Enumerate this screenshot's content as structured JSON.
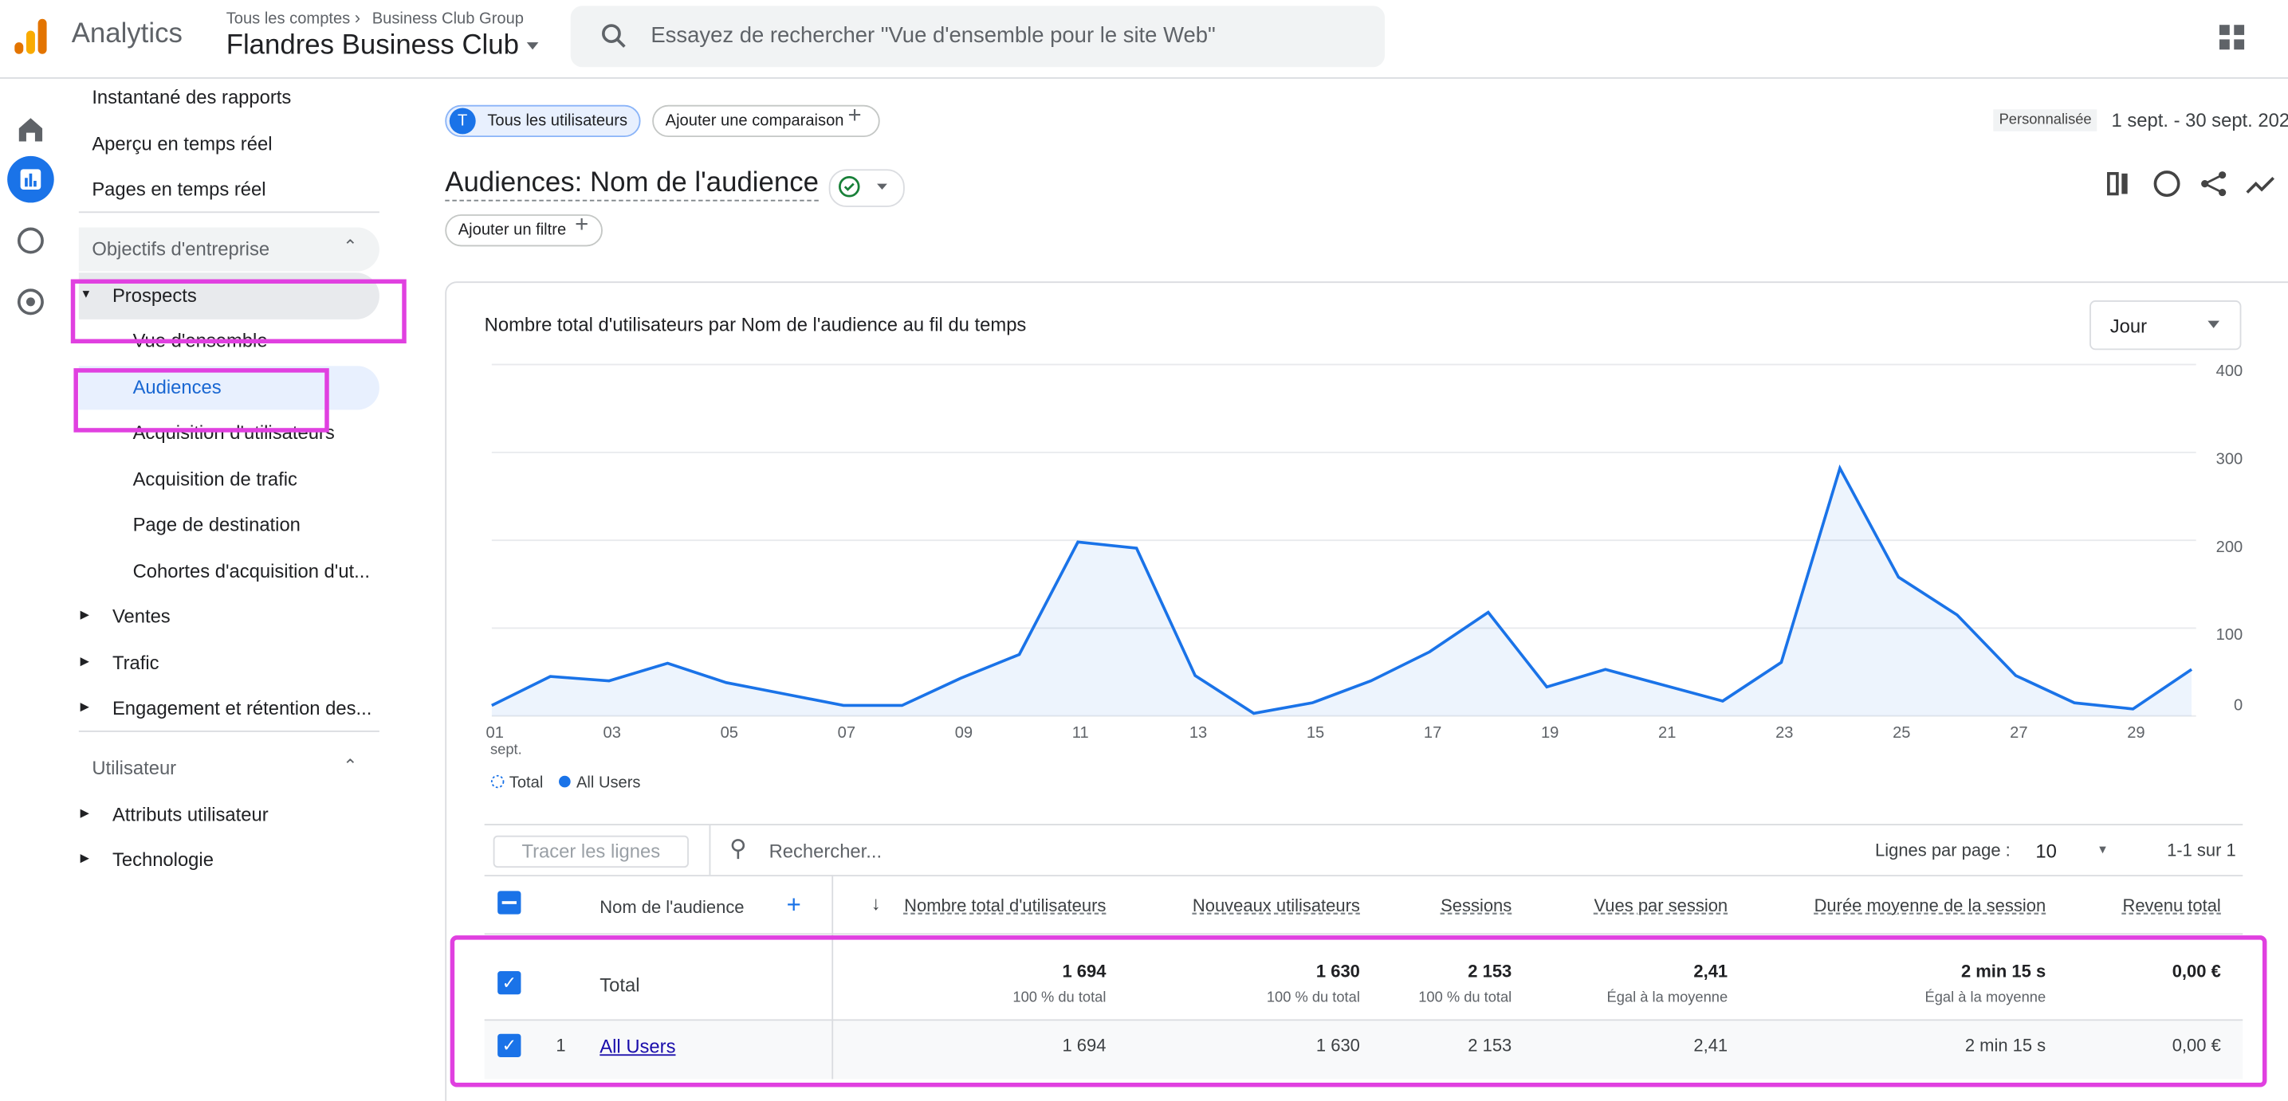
{
  "header": {
    "app": "Analytics",
    "breadcrumb": [
      "Tous les comptes",
      "Business Club Group"
    ],
    "property": "Flandres Business Club",
    "search_placeholder": "Essayez de rechercher \"Vue d'ensemble pour le site Web\""
  },
  "nav": {
    "items": [
      {
        "label": "Instantané des rapports",
        "kind": "link"
      },
      {
        "label": "Aperçu en temps réel",
        "kind": "link"
      },
      {
        "label": "Pages en temps réel",
        "kind": "link"
      },
      {
        "label": "Objectifs d'entreprise",
        "kind": "section"
      },
      {
        "label": "Prospects",
        "kind": "group-open"
      },
      {
        "label": "Vue d'ensemble",
        "kind": "sub"
      },
      {
        "label": "Audiences",
        "kind": "sub-selected"
      },
      {
        "label": "Acquisition d'utilisateurs",
        "kind": "sub"
      },
      {
        "label": "Acquisition de trafic",
        "kind": "sub"
      },
      {
        "label": "Page de destination",
        "kind": "sub"
      },
      {
        "label": "Cohortes d'acquisition d'ut...",
        "kind": "sub"
      },
      {
        "label": "Ventes",
        "kind": "group"
      },
      {
        "label": "Trafic",
        "kind": "group"
      },
      {
        "label": "Engagement et rétention des...",
        "kind": "group"
      },
      {
        "label": "Utilisateur",
        "kind": "section"
      },
      {
        "label": "Attributs utilisateur",
        "kind": "group"
      },
      {
        "label": "Technologie",
        "kind": "group"
      }
    ]
  },
  "toolbar": {
    "segment_letter": "T",
    "segment": "Tous les utilisateurs",
    "add_comparison": "Ajouter une comparaison",
    "date_type": "Personnalisée",
    "date_range": "1 sept. - 30 sept. 202",
    "report_title": "Audiences: Nom de l'audience",
    "add_filter": "Ajouter un filtre"
  },
  "chart_data": {
    "type": "line",
    "title": "Nombre total d'utilisateurs par Nom de l'audience au fil du temps",
    "granularity": "Jour",
    "categories": [
      "01",
      null,
      "03",
      null,
      "05",
      null,
      "07",
      null,
      "09",
      null,
      "11",
      null,
      "13",
      null,
      "15",
      null,
      "17",
      null,
      "19",
      null,
      "21",
      null,
      "23",
      null,
      "25",
      null,
      "27",
      null,
      "29",
      null
    ],
    "x_month_label": "sept.",
    "legend_items": [
      "Total",
      "All Users"
    ],
    "series": [
      {
        "name": "All Users",
        "color": "#1a73e8",
        "values": [
          12,
          45,
          40,
          60,
          38,
          25,
          12,
          12,
          43,
          70,
          198,
          191,
          46,
          3,
          15,
          40,
          73,
          118,
          33,
          53,
          35,
          17,
          61,
          282,
          158,
          115,
          46,
          15,
          8,
          53
        ]
      }
    ],
    "ylim": [
      0,
      400
    ],
    "yticks": [
      0,
      100,
      200,
      300,
      400
    ],
    "grid": true
  },
  "table": {
    "plot_rows": "Tracer les lignes",
    "search": "Rechercher...",
    "rows_per_page_label": "Lignes par page :",
    "rows_per_page": "10",
    "pagination": "1-1 sur 1",
    "columns": [
      "Nom de l'audience",
      "Nombre total d'utilisateurs",
      "Nouveaux utilisateurs",
      "Sessions",
      "Vues par session",
      "Durée moyenne de la session",
      "Revenu total"
    ],
    "total": {
      "label": "Total",
      "values": [
        "1 694",
        "1 630",
        "2 153",
        "2,41",
        "2 min 15 s",
        "0,00 €"
      ],
      "notes": [
        "100 % du total",
        "100 % du total",
        "100 % du total",
        "Égal à la moyenne",
        "Égal à la moyenne"
      ]
    },
    "rows": [
      {
        "index": "1",
        "name": "All Users",
        "values": [
          "1 694",
          "1 630",
          "2 153",
          "2,41",
          "2 min 15 s",
          "0,00 €"
        ]
      }
    ]
  }
}
